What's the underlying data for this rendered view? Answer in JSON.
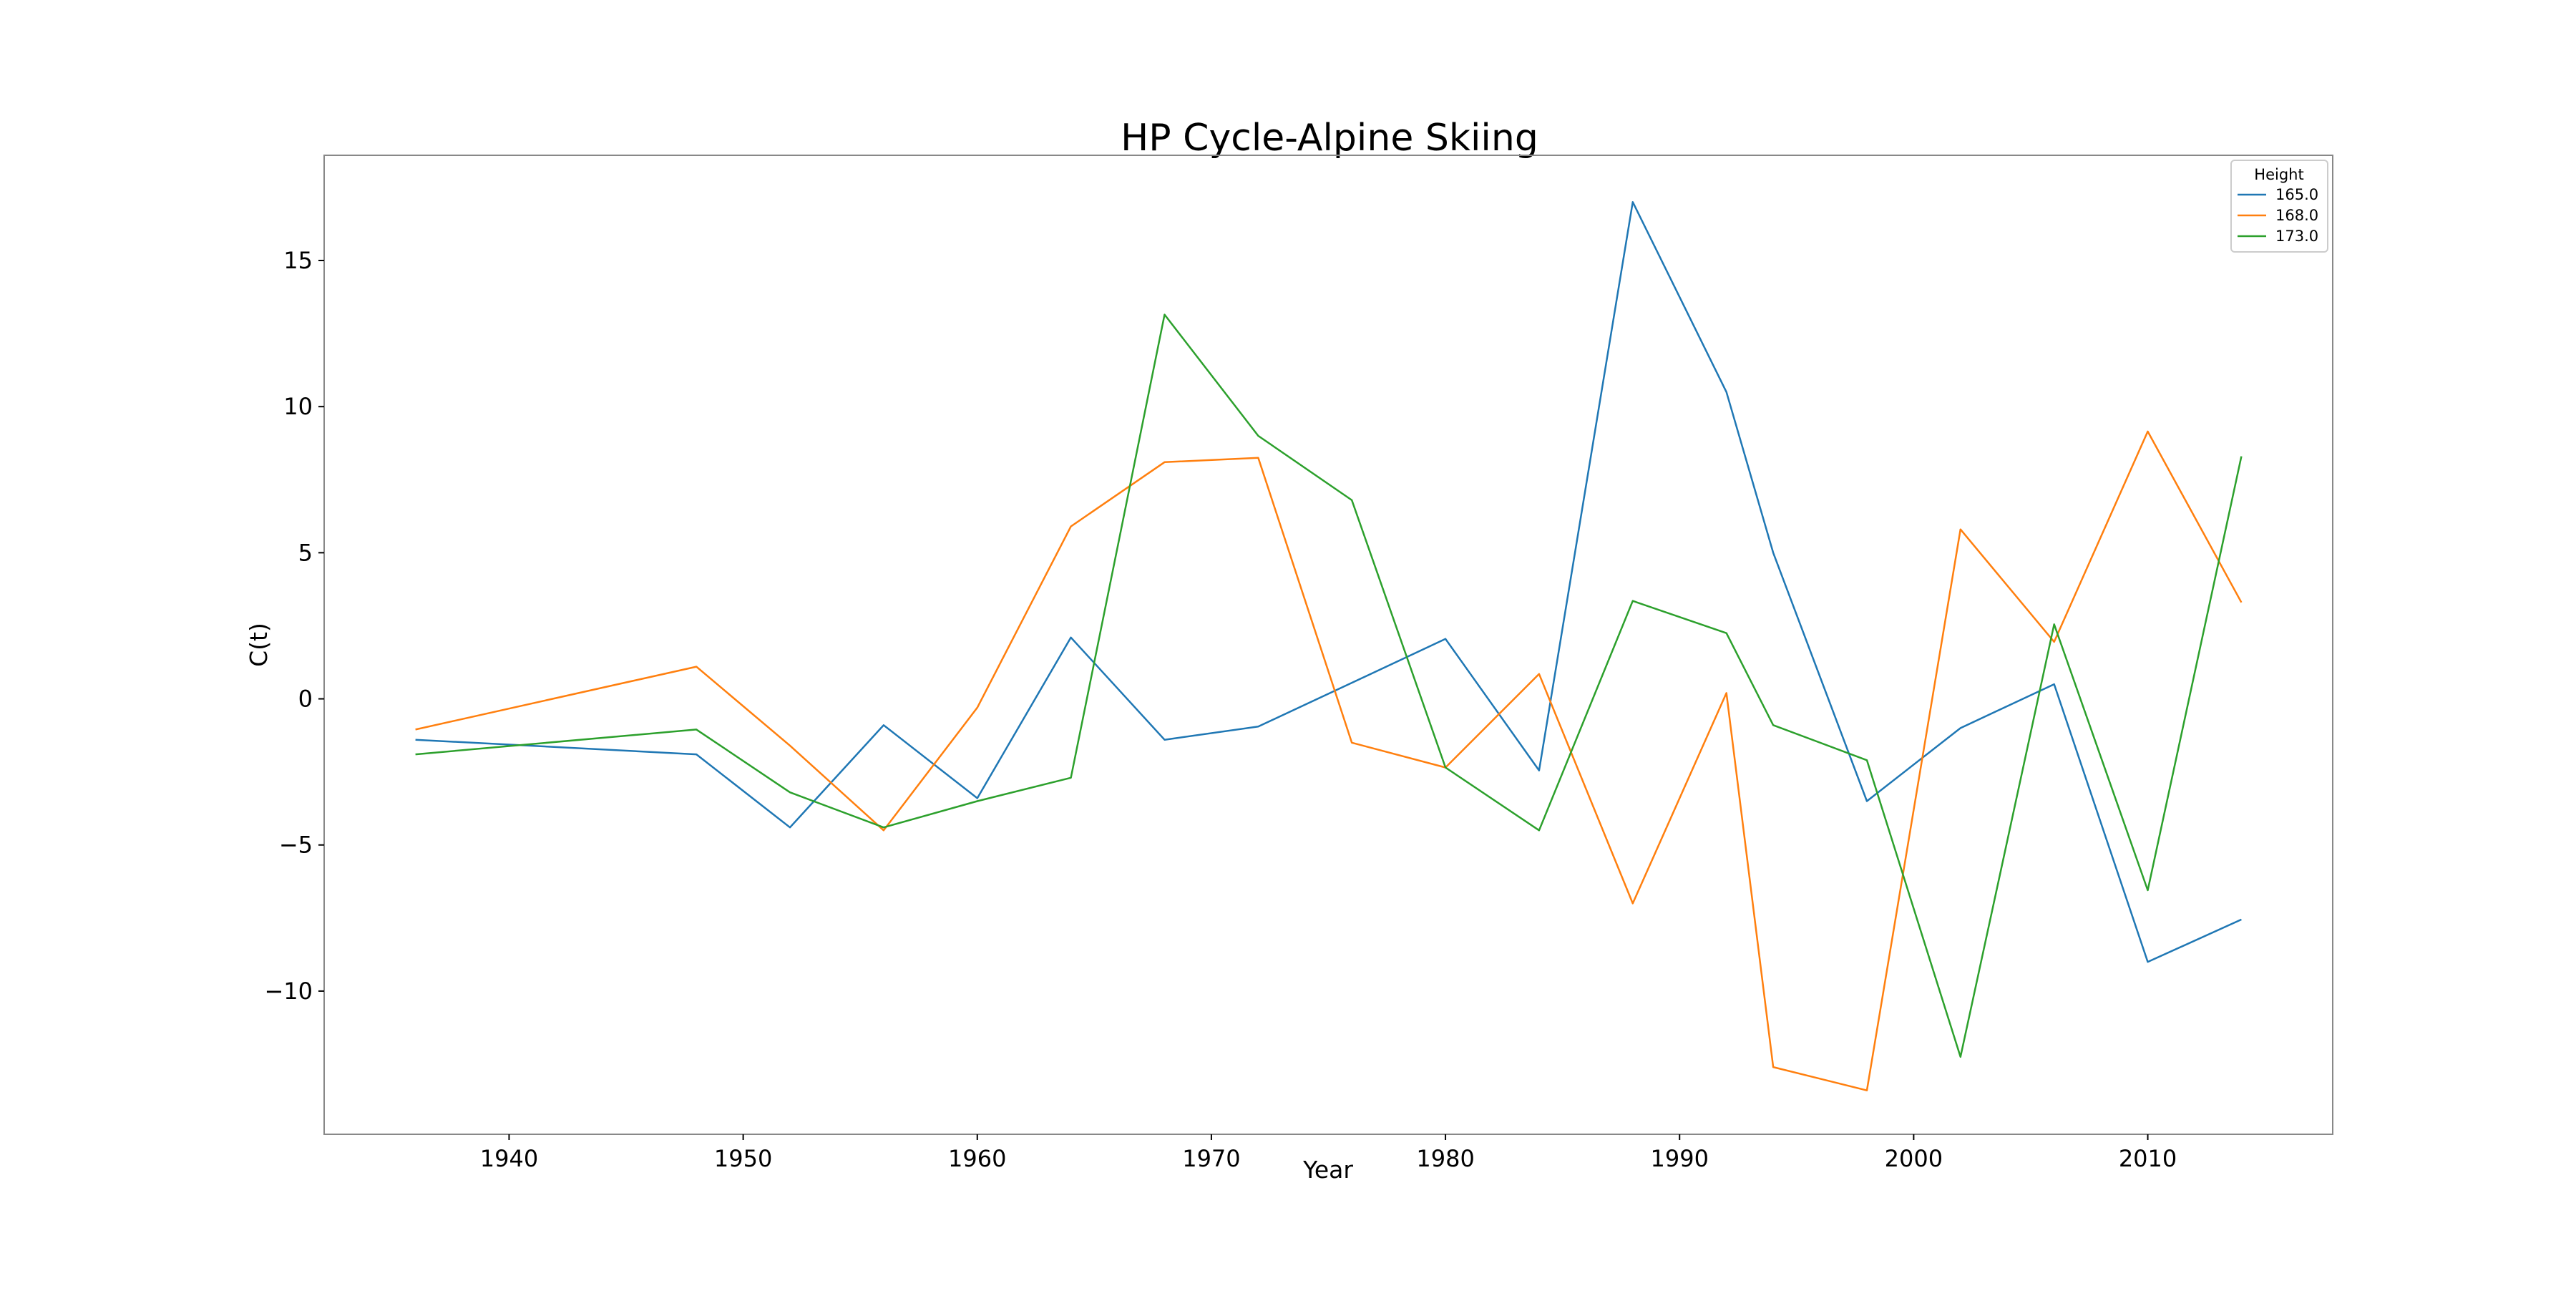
{
  "chart_data": {
    "type": "line",
    "title": "HP Cycle-Alpine Skiing",
    "xlabel": "Year",
    "ylabel": "C(t)",
    "xlim": [
      1932.1,
      2017.9
    ],
    "ylim": [
      -14.9,
      18.6
    ],
    "xticks": [
      1940,
      1950,
      1960,
      1970,
      1980,
      1990,
      2000,
      2010
    ],
    "xtick_labels": [
      "1940",
      "1950",
      "1960",
      "1970",
      "1980",
      "1990",
      "2000",
      "2010"
    ],
    "yticks": [
      -10,
      -5,
      0,
      5,
      10,
      15
    ],
    "ytick_labels": [
      "−10",
      "−5",
      "0",
      "5",
      "10",
      "15"
    ],
    "grid": false,
    "legend": {
      "title": "Height",
      "position": "top-right"
    },
    "series": [
      {
        "name": "165.0",
        "color": "#1f77b4",
        "x": [
          1936,
          1948,
          1952,
          1956,
          1960,
          1964,
          1968,
          1972,
          1976,
          1980,
          1984,
          1988,
          1992,
          1994,
          1998,
          2002,
          2006,
          2010,
          2014
        ],
        "y": [
          -1.4,
          -1.9,
          -4.4,
          -0.9,
          -3.4,
          2.1,
          -1.4,
          -0.95,
          0.55,
          2.05,
          -2.45,
          17.0,
          10.5,
          5.0,
          -3.5,
          -1.0,
          0.5,
          -9.0,
          -7.55
        ]
      },
      {
        "name": "168.0",
        "color": "#ff7f0e",
        "x": [
          1936,
          1948,
          1952,
          1956,
          1960,
          1964,
          1968,
          1972,
          1976,
          1980,
          1984,
          1988,
          1992,
          1994,
          1998,
          2002,
          2006,
          2010,
          2014
        ],
        "y": [
          -1.05,
          1.1,
          -1.6,
          -4.5,
          -0.3,
          5.9,
          8.1,
          8.25,
          -1.5,
          -2.35,
          0.85,
          -7.0,
          0.2,
          -12.6,
          -13.4,
          5.8,
          1.95,
          9.15,
          3.3
        ]
      },
      {
        "name": "173.0",
        "color": "#2ca02c",
        "x": [
          1936,
          1948,
          1952,
          1956,
          1960,
          1964,
          1968,
          1972,
          1976,
          1980,
          1984,
          1988,
          1992,
          1994,
          1998,
          2002,
          2006,
          2010,
          2014
        ],
        "y": [
          -1.9,
          -1.05,
          -3.2,
          -4.4,
          -3.5,
          -2.7,
          13.15,
          9.0,
          6.8,
          -2.35,
          -4.5,
          3.35,
          2.25,
          -0.9,
          -2.1,
          -12.25,
          2.55,
          -6.55,
          8.3
        ]
      }
    ]
  }
}
